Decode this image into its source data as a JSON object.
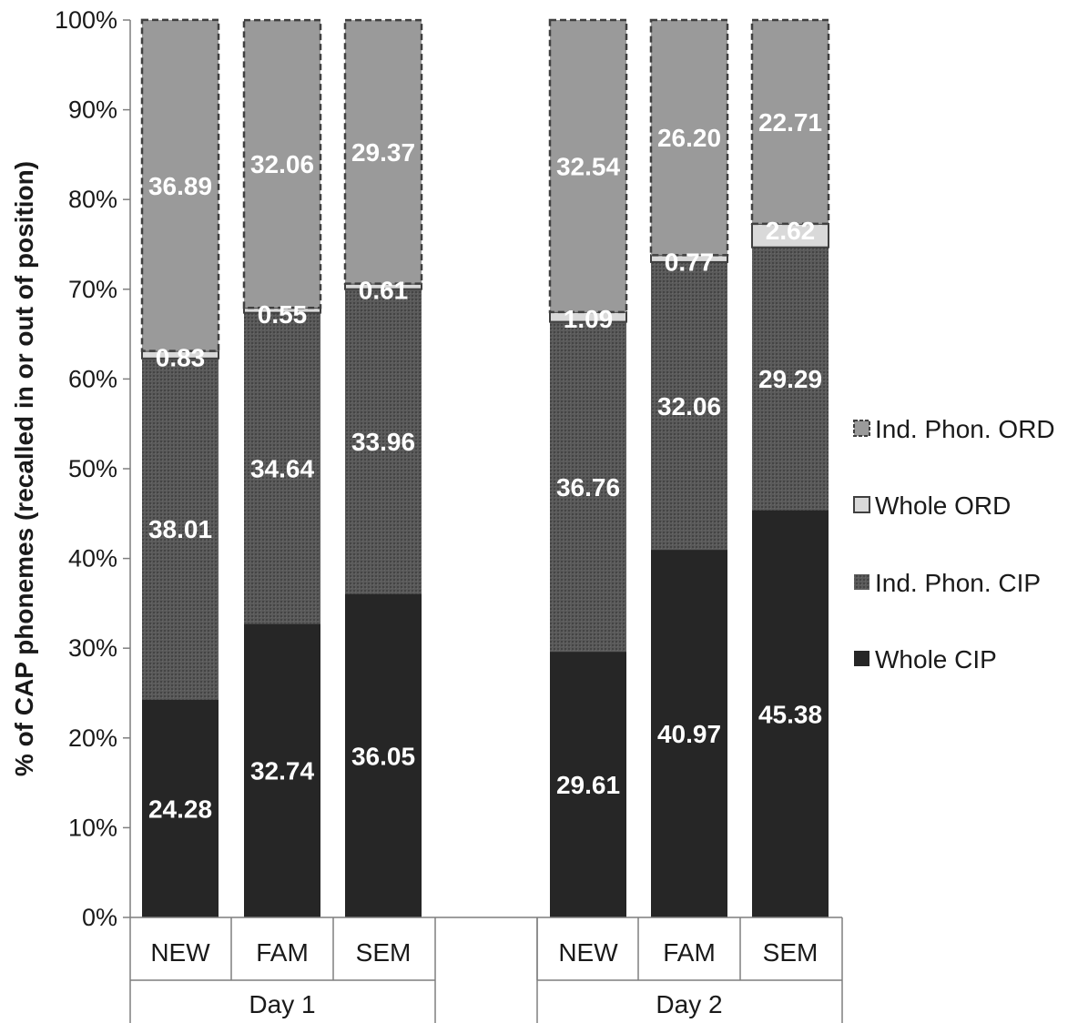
{
  "chart_data": {
    "type": "bar",
    "stacked": true,
    "percent_stacked": true,
    "ylabel": "% of CAP phonemes (recalled in or out of position)",
    "ylim": [
      0,
      100
    ],
    "yticks": [
      "0%",
      "10%",
      "20%",
      "30%",
      "40%",
      "50%",
      "60%",
      "70%",
      "80%",
      "90%",
      "100%"
    ],
    "groups": [
      {
        "label": "Day 1",
        "categories": [
          "NEW",
          "FAM",
          "SEM"
        ]
      },
      {
        "label": "Day 2",
        "categories": [
          "NEW",
          "FAM",
          "SEM"
        ]
      }
    ],
    "series": [
      {
        "name": "Whole CIP",
        "color": "#262626",
        "pattern": "solid",
        "values": [
          24.28,
          32.74,
          36.05,
          29.61,
          40.97,
          45.38
        ],
        "labels": [
          "24.28",
          "32.74",
          "36.05",
          "29.61",
          "40.97",
          "45.38"
        ]
      },
      {
        "name": "Ind. Phon. CIP",
        "color": "#555555",
        "pattern": "dotted",
        "values": [
          38.01,
          34.64,
          33.96,
          36.76,
          32.06,
          29.29
        ],
        "labels": [
          "38.01",
          "34.64",
          "33.96",
          "36.76",
          "32.06",
          "29.29"
        ]
      },
      {
        "name": "Whole ORD",
        "color": "#d9d9d9",
        "pattern": "solid",
        "values": [
          0.83,
          0.55,
          0.61,
          1.09,
          0.77,
          2.62
        ],
        "labels": [
          "0.83",
          "0.55",
          "0.61",
          "1.09",
          "0.77",
          "2.62"
        ]
      },
      {
        "name": "Ind. Phon. ORD",
        "color": "#9a9a9a",
        "pattern": "dashed-border",
        "values": [
          36.89,
          32.06,
          29.37,
          32.54,
          26.2,
          22.71
        ],
        "labels": [
          "36.89",
          "32.06",
          "29.37",
          "32.54",
          "26.20",
          "22.71"
        ]
      }
    ],
    "legend": {
      "position": "right",
      "order": [
        "Ind. Phon. ORD",
        "Whole ORD",
        "Ind. Phon. CIP",
        "Whole CIP"
      ]
    }
  }
}
